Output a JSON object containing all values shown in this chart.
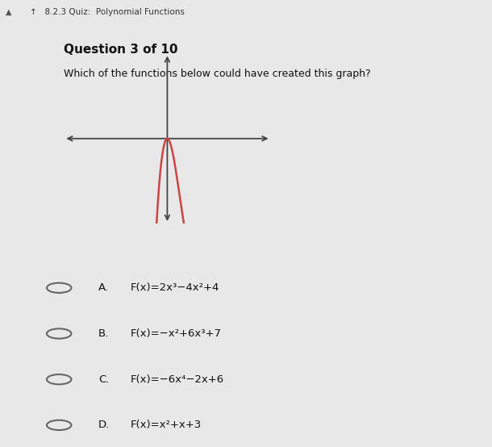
{
  "top_bar_text": "8.2.3 Quiz:  Polynomial Functions",
  "question_text": "Question 3 of 10",
  "prompt_text": "Which of the functions below could have created this graph?",
  "bg_color": "#e8e8e8",
  "top_bar_bg": "#dce8f0",
  "content_bg": "#f0f0f0",
  "graph_bg": "#f0f0f0",
  "options_bg": "#f5f5f5",
  "options": [
    {
      "label": "A.",
      "formula": "F(x)=2x³−4x²+4"
    },
    {
      "label": "B.",
      "formula": "F(x)=−x²+6x³+7"
    },
    {
      "label": "C.",
      "formula": "F(x)=−6x⁴−2x+6"
    },
    {
      "label": "D.",
      "formula": "F(x)=x²+x+3"
    }
  ],
  "curve_color": "#cc4444",
  "axis_color": "#444444",
  "divider_color": "#bbbbbb",
  "text_color": "#111111",
  "top_bar_text_color": "#333333"
}
